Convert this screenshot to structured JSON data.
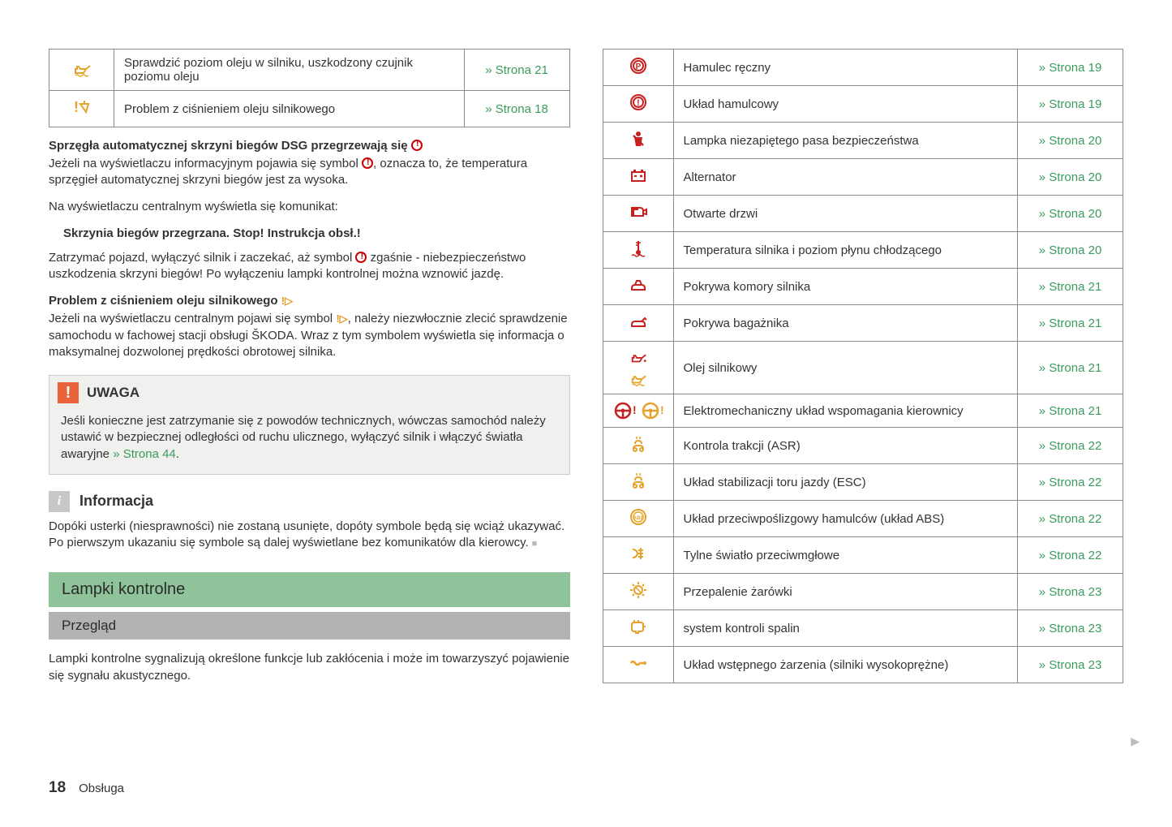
{
  "footer": {
    "page_number": "18",
    "section": "Obsługa"
  },
  "colors": {
    "link_green": "#3a9b5c",
    "icon_red": "#c62020",
    "icon_yellow": "#e6a22a",
    "bar_green": "#8fc49a",
    "bar_grey": "#b5b3b1"
  },
  "left": {
    "table1": [
      {
        "desc": "Sprawdzić poziom oleju w silniku, uszkodzony czujnik poziomu oleju",
        "page": "Strona 21",
        "icon": "oil-level-yellow"
      },
      {
        "desc": "Problem z ciśnieniem oleju silnikowego",
        "page": "Strona 18",
        "icon": "oil-pressure-yellow"
      }
    ],
    "para1_title": "Sprzęgła automatycznej skrzyni biegów DSG przegrzewają się",
    "para1_body": "Jeżeli na wyświetlaczu informacyjnym pojawia się symbol  , oznacza to, że temperatura sprzęgieł automatycznej skrzyni biegów jest za wysoka.",
    "para2": "Na wyświetlaczu centralnym wyświetla się komunikat:",
    "sub1": "Skrzynia biegów przegrzana. Stop! Instrukcja obsł.!",
    "para3": "Zatrzymać pojazd, wyłączyć silnik i zaczekać, aż symbol   zgaśnie - niebezpieczeństwo uszkodzenia skrzyni biegów! Po wyłączeniu lampki kontrolnej można wznowić jazdę.",
    "para4_title": "Problem z ciśnieniem oleju silnikowego",
    "para4_body": "Jeżeli na wyświetlaczu centralnym pojawi się symbol  , należy niezwłocznie zlecić sprawdzenie samochodu w fachowej stacji obsługi ŠKODA. Wraz z tym symbolem wyświetla się informacja o maksymalnej dozwolonej prędkości obrotowej silnika.",
    "uwaga_label": "UWAGA",
    "uwaga_body_a": "Jeśli konieczne jest zatrzymanie się z powodów technicznych, wówczas samochód należy ustawić w bezpiecznej odległości od ruchu ulicznego, wyłączyć silnik i włączyć światła awaryjne ",
    "uwaga_link": "» Strona 44",
    "info_label": "Informacja",
    "info_body": "Dopóki usterki (niesprawności) nie zostaną usunięte, dopóty symbole będą się wciąż ukazywać. Po pierwszym ukazaniu się symbole są dalej wyświetlane bez komunikatów dla kierowcy.",
    "green_bar": "Lampki kontrolne",
    "grey_bar": "Przegląd",
    "para5": "Lampki kontrolne sygnalizują określone funkcje lub zakłócenia i może im towarzyszyć pojawienie się sygnału akustycznego."
  },
  "right": {
    "rows": [
      {
        "icon": "parking-brake",
        "color": "#c62020",
        "desc": "Hamulec ręczny",
        "page": "Strona 19"
      },
      {
        "icon": "brake-system",
        "color": "#c62020",
        "desc": "Układ hamulcowy",
        "page": "Strona 19"
      },
      {
        "icon": "seatbelt",
        "color": "#c62020",
        "desc": "Lampka niezapiętego pasa bezpieczeństwa",
        "page": "Strona 20"
      },
      {
        "icon": "battery",
        "color": "#c62020",
        "desc": "Alternator",
        "page": "Strona 20"
      },
      {
        "icon": "door-open",
        "color": "#c62020",
        "desc": "Otwarte drzwi",
        "page": "Strona 20"
      },
      {
        "icon": "coolant-temp",
        "color": "#c62020",
        "desc": "Temperatura silnika i poziom płynu chłodzącego",
        "page": "Strona 20"
      },
      {
        "icon": "bonnet",
        "color": "#c62020",
        "desc": "Pokrywa komory silnika",
        "page": "Strona 21"
      },
      {
        "icon": "boot",
        "color": "#c62020",
        "desc": "Pokrywa bagażnika",
        "page": "Strona 21"
      },
      {
        "icon": "engine-oil-dual",
        "color": "dual",
        "desc": "Olej silnikowy",
        "page": "Strona 21"
      },
      {
        "icon": "power-steering-dual",
        "color": "dual",
        "desc": "Elektromechaniczny układ wspomagania kierownicy",
        "page": "Strona 21"
      },
      {
        "icon": "traction-asr",
        "color": "#e6a22a",
        "desc": "Kontrola trakcji (ASR)",
        "page": "Strona 22"
      },
      {
        "icon": "esc",
        "color": "#e6a22a",
        "desc": "Układ stabilizacji toru jazdy (ESC)",
        "page": "Strona 22"
      },
      {
        "icon": "abs",
        "color": "#e6a22a",
        "desc": "Układ przeciwpoślizgowy hamulców (układ ABS)",
        "page": "Strona 22"
      },
      {
        "icon": "rear-fog",
        "color": "#e6a22a",
        "desc": "Tylne światło przeciwmgłowe",
        "page": "Strona 22"
      },
      {
        "icon": "bulb-failure",
        "color": "#e6a22a",
        "desc": "Przepalenie żarówki",
        "page": "Strona 23"
      },
      {
        "icon": "emission",
        "color": "#e6a22a",
        "desc": "system kontroli spalin",
        "page": "Strona 23"
      },
      {
        "icon": "glow-plug",
        "color": "#e6a22a",
        "desc": "Układ wstępnego żarzenia (silniki wysokoprężne)",
        "page": "Strona 23"
      }
    ]
  }
}
